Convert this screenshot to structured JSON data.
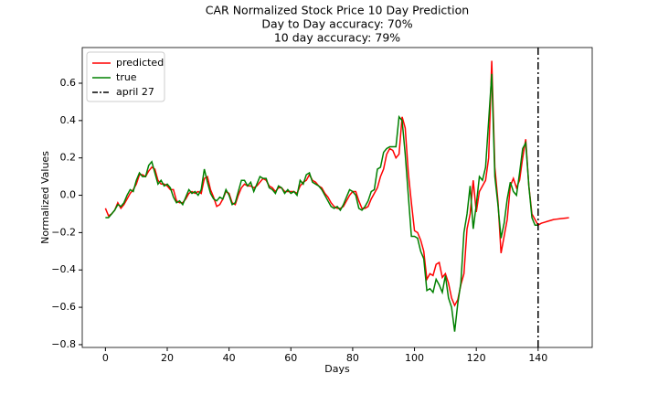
{
  "chart_data": {
    "type": "line",
    "title": "CAR Normalized Stock Price 10 Day Prediction",
    "subtitle": [
      "Day to Day accuracy: 70%",
      "10 day accuracy: 79%"
    ],
    "xlabel": "Days",
    "ylabel": "Normalized Values",
    "x": [
      0,
      1,
      2,
      3,
      4,
      5,
      6,
      7,
      8,
      9,
      10,
      11,
      12,
      13,
      14,
      15,
      16,
      17,
      18,
      19,
      20,
      21,
      22,
      23,
      24,
      25,
      26,
      27,
      28,
      29,
      30,
      31,
      32,
      33,
      34,
      35,
      36,
      37,
      38,
      39,
      40,
      41,
      42,
      43,
      44,
      45,
      46,
      47,
      48,
      49,
      50,
      51,
      52,
      53,
      54,
      55,
      56,
      57,
      58,
      59,
      60,
      61,
      62,
      63,
      64,
      65,
      66,
      67,
      68,
      69,
      70,
      71,
      72,
      73,
      74,
      75,
      76,
      77,
      78,
      79,
      80,
      81,
      82,
      83,
      84,
      85,
      86,
      87,
      88,
      89,
      90,
      91,
      92,
      93,
      94,
      95,
      96,
      97,
      98,
      99,
      100,
      101,
      102,
      103,
      104,
      105,
      106,
      107,
      108,
      109,
      110,
      111,
      112,
      113,
      114,
      115,
      116,
      117,
      118,
      119,
      120,
      121,
      122,
      123,
      124,
      125,
      126,
      127,
      128,
      129,
      130,
      131,
      132,
      133,
      134,
      135,
      136,
      137,
      138,
      139,
      140,
      141,
      142,
      143,
      144,
      145,
      146,
      147,
      148,
      149,
      150
    ],
    "series": [
      {
        "name": "predicted",
        "color": "#ff0000",
        "values": [
          -0.07,
          -0.11,
          -0.1,
          -0.08,
          -0.04,
          -0.07,
          -0.05,
          -0.02,
          0.01,
          0.03,
          0.06,
          0.11,
          0.11,
          0.1,
          0.13,
          0.15,
          0.14,
          0.08,
          0.06,
          0.06,
          0.05,
          0.03,
          0.03,
          -0.03,
          -0.04,
          -0.04,
          -0.02,
          0.01,
          0.02,
          0.01,
          0.02,
          0.01,
          0.09,
          0.1,
          0.03,
          -0.01,
          -0.06,
          -0.05,
          -0.02,
          0.02,
          0.01,
          -0.04,
          -0.05,
          0.0,
          0.04,
          0.06,
          0.05,
          0.05,
          0.04,
          0.05,
          0.07,
          0.09,
          0.08,
          0.05,
          0.04,
          0.02,
          0.04,
          0.04,
          0.02,
          0.02,
          0.02,
          0.02,
          0.01,
          0.05,
          0.07,
          0.08,
          0.11,
          0.08,
          0.07,
          0.05,
          0.04,
          0.01,
          -0.01,
          -0.04,
          -0.06,
          -0.07,
          -0.07,
          -0.06,
          -0.03,
          0.0,
          0.02,
          0.02,
          -0.03,
          -0.07,
          -0.07,
          -0.06,
          -0.02,
          0.01,
          0.04,
          0.1,
          0.14,
          0.22,
          0.25,
          0.24,
          0.2,
          0.22,
          0.42,
          0.36,
          0.12,
          -0.04,
          -0.19,
          -0.2,
          -0.24,
          -0.3,
          -0.45,
          -0.42,
          -0.43,
          -0.37,
          -0.36,
          -0.44,
          -0.42,
          -0.47,
          -0.55,
          -0.59,
          -0.56,
          -0.48,
          -0.42,
          -0.18,
          -0.1,
          0.08,
          -0.09,
          0.02,
          0.05,
          0.08,
          0.2,
          0.72,
          0.15,
          -0.03,
          -0.31,
          -0.22,
          -0.13,
          0.05,
          0.09,
          0.04,
          0.08,
          0.2,
          0.3,
          0.05,
          -0.1,
          -0.13,
          -0.16,
          -0.15,
          -0.145,
          -0.14,
          -0.135,
          -0.13,
          -0.128,
          -0.126,
          -0.124,
          -0.122,
          -0.12
        ]
      },
      {
        "name": "true",
        "color": "#008000",
        "values": [
          -0.12,
          -0.12,
          -0.1,
          -0.08,
          -0.05,
          -0.06,
          -0.04,
          0.0,
          0.03,
          0.02,
          0.08,
          0.12,
          0.1,
          0.1,
          0.16,
          0.18,
          0.12,
          0.06,
          0.08,
          0.05,
          0.06,
          0.04,
          -0.01,
          -0.04,
          -0.03,
          -0.05,
          -0.01,
          0.03,
          0.01,
          0.02,
          0.0,
          0.03,
          0.14,
          0.07,
          0.01,
          -0.02,
          -0.03,
          -0.01,
          -0.02,
          0.03,
          0.0,
          -0.05,
          -0.04,
          0.02,
          0.08,
          0.08,
          0.05,
          0.07,
          0.02,
          0.06,
          0.1,
          0.09,
          0.09,
          0.04,
          0.03,
          0.01,
          0.05,
          0.04,
          0.01,
          0.03,
          0.01,
          0.02,
          0.0,
          0.08,
          0.06,
          0.11,
          0.12,
          0.07,
          0.06,
          0.05,
          0.03,
          0.0,
          -0.03,
          -0.06,
          -0.07,
          -0.06,
          -0.08,
          -0.05,
          -0.01,
          0.03,
          0.02,
          0.0,
          -0.07,
          -0.08,
          -0.06,
          -0.03,
          0.02,
          0.03,
          0.14,
          0.15,
          0.23,
          0.25,
          0.26,
          0.26,
          0.26,
          0.42,
          0.4,
          0.22,
          0.0,
          -0.22,
          -0.22,
          -0.23,
          -0.3,
          -0.34,
          -0.51,
          -0.5,
          -0.52,
          -0.45,
          -0.48,
          -0.52,
          -0.43,
          -0.55,
          -0.6,
          -0.73,
          -0.58,
          -0.47,
          -0.2,
          -0.1,
          0.05,
          -0.18,
          -0.05,
          0.1,
          0.08,
          0.15,
          0.4,
          0.65,
          0.1,
          -0.05,
          -0.23,
          -0.15,
          -0.02,
          0.07,
          0.02,
          0.0,
          0.12,
          0.25,
          0.28,
          0.05,
          -0.12,
          -0.16,
          -0.16,
          null,
          null,
          null,
          null,
          null,
          null,
          null,
          null,
          null,
          null
        ]
      }
    ],
    "vline": {
      "x": 140,
      "label": "april 27",
      "color": "#000000"
    },
    "xlim": [
      -7.5,
      157.5
    ],
    "ylim": [
      -0.815,
      0.791
    ],
    "xticks": [
      0,
      20,
      40,
      60,
      80,
      100,
      120,
      140
    ],
    "yticks": [
      {
        "value": -0.8,
        "label": "−0.8"
      },
      {
        "value": -0.6,
        "label": "−0.6"
      },
      {
        "value": -0.4,
        "label": "−0.4"
      },
      {
        "value": -0.2,
        "label": "−0.2"
      },
      {
        "value": 0,
        "label": "0.0"
      },
      0.2,
      0.4,
      0.6
    ],
    "legend": "upper left",
    "grid": false
  }
}
